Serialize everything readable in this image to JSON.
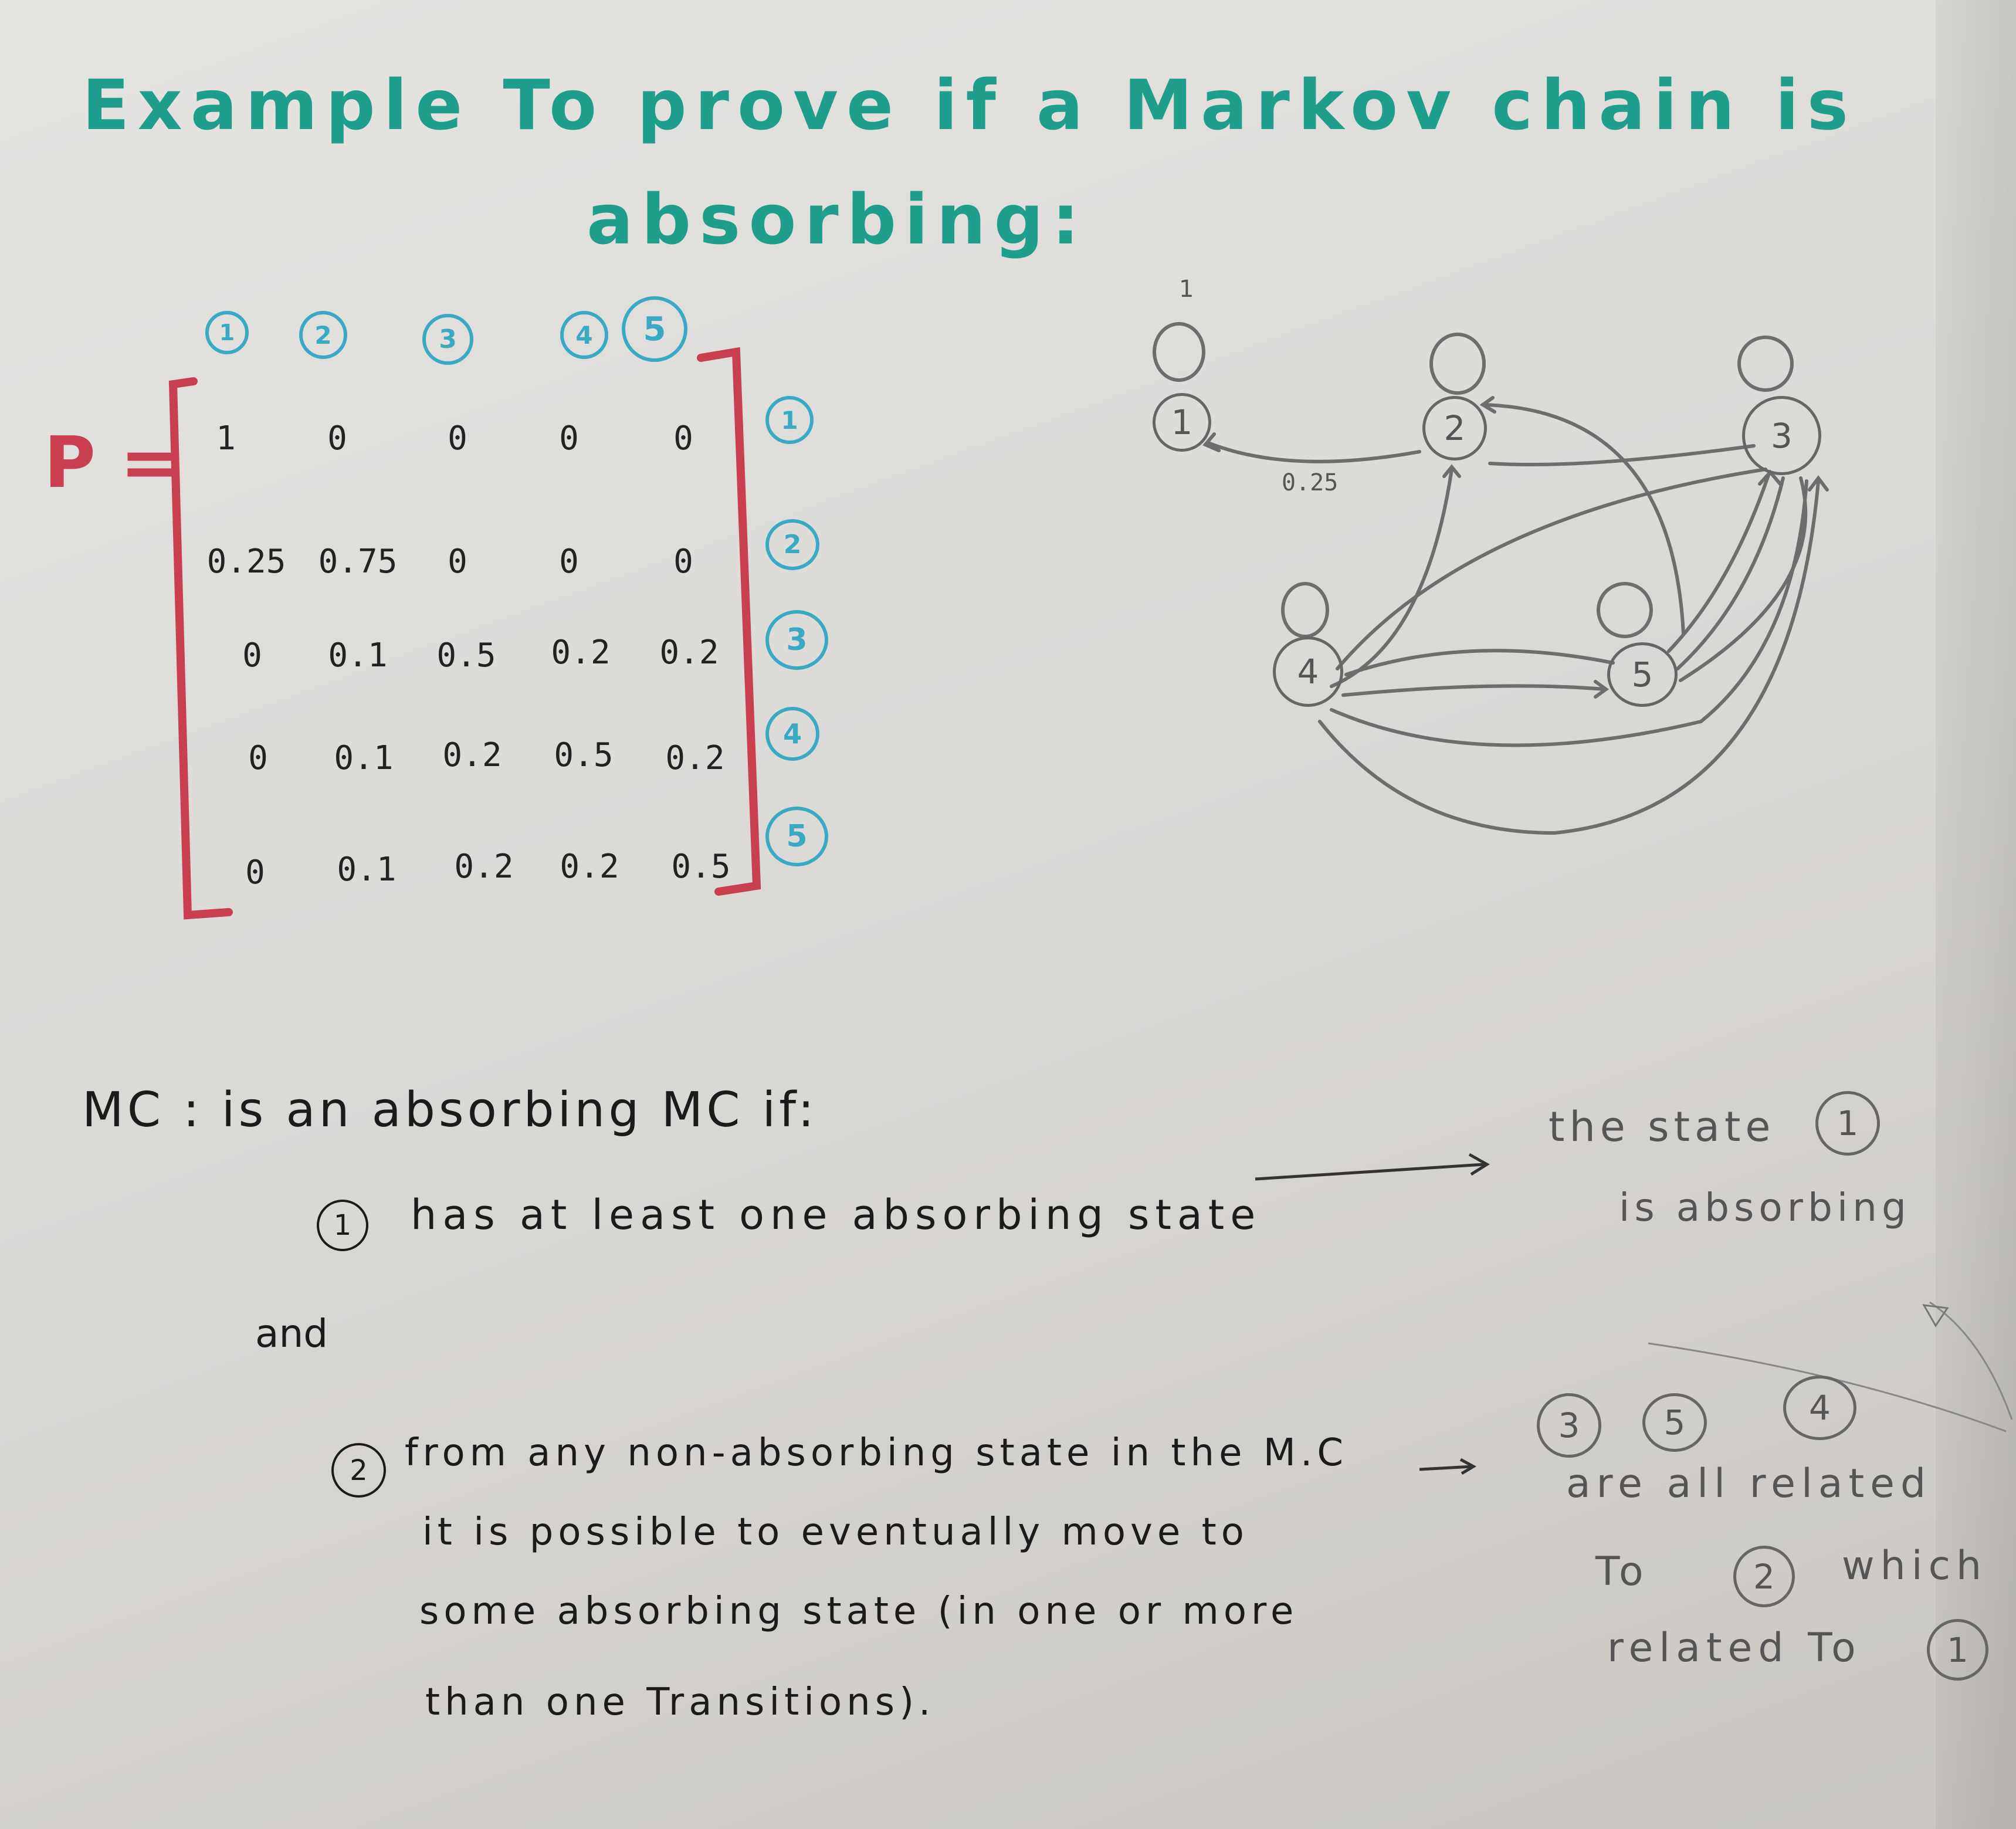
{
  "title": {
    "line1": "Example To prove if a Markov chain is",
    "line2": "absorbing:"
  },
  "matrix": {
    "label": "P =",
    "column_labels": [
      "1",
      "2",
      "3",
      "4",
      "5"
    ],
    "row_labels": [
      "1",
      "2",
      "3",
      "4",
      "5"
    ],
    "rows": [
      [
        "1",
        "0",
        "0",
        "0",
        "0"
      ],
      [
        "0.25",
        "0.75",
        "0",
        "0",
        "0"
      ],
      [
        "0",
        "0.1",
        "0.5",
        "0.2",
        "0.2"
      ],
      [
        "0",
        "0.1",
        "0.2",
        "0.5",
        "0.2"
      ],
      [
        "0",
        "0.1",
        "0.2",
        "0.2",
        "0.5"
      ]
    ]
  },
  "graph": {
    "states": [
      "1",
      "2",
      "3",
      "4",
      "5"
    ],
    "self_loop_label": "1",
    "edge_label": "0.25"
  },
  "definition": {
    "heading": "MC : is an absorbing MC if:",
    "condition1_number": "1",
    "condition1": "has at least one absorbing state",
    "note1_line1": "the state",
    "note1_state": "1",
    "note1_line2": "is absorbing",
    "connector": "and",
    "condition2_number": "2",
    "condition2_line1": "from any non-absorbing state in the M.C",
    "condition2_line2": "it is possible to eventually move to",
    "condition2_line3": "some absorbing state (in one or more",
    "condition2_line4": "than one Transitions).",
    "note2_states": [
      "3",
      "5",
      "4"
    ],
    "note2_line1": "are all related",
    "note2_line2_pre": "To",
    "note2_line2_state": "2",
    "note2_line2_post": "which",
    "note2_line3_pre": "related To",
    "note2_line3_state": "1"
  },
  "colors": {
    "title": "#1f9e8c",
    "labels": "#3aa9c4",
    "bracket": "#c8404f",
    "pencil": "#666666",
    "ink": "#1b1b1b"
  }
}
